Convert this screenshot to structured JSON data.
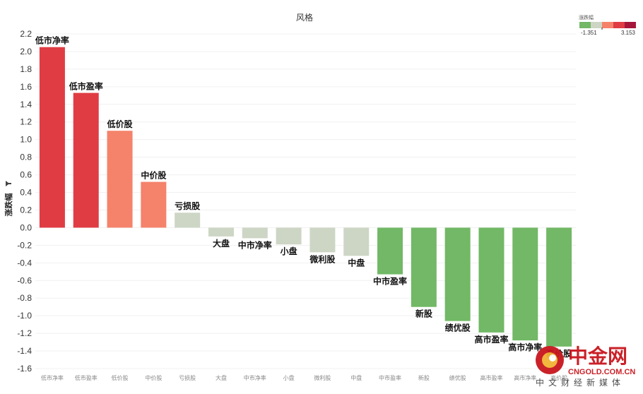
{
  "chart_data": {
    "type": "bar",
    "title": "风格",
    "ylabel": "涨跌幅",
    "ylabel_icon": "filter-icon",
    "ylim": [
      -1.6,
      2.2
    ],
    "yticks": [
      "2.2",
      "2.0",
      "1.8",
      "1.6",
      "1.4",
      "1.2",
      "1.0",
      "0.8",
      "0.6",
      "0.4",
      "0.2",
      "0.0",
      "-0.2",
      "-0.4",
      "-0.6",
      "-0.8",
      "-1.0",
      "-1.2",
      "-1.4",
      "-1.6"
    ],
    "grid": true,
    "categories": [
      "低市净率",
      "低市盈率",
      "低价股",
      "中价股",
      "亏损股",
      "大盘",
      "中市净率",
      "小盘",
      "微利股",
      "中盘",
      "中市盈率",
      "新股",
      "绩优股",
      "高市盈率",
      "高市净率",
      "高价股"
    ],
    "values": [
      2.05,
      1.53,
      1.1,
      0.52,
      0.17,
      -0.1,
      -0.12,
      -0.19,
      -0.28,
      -0.32,
      -0.53,
      -0.9,
      -1.06,
      -1.19,
      -1.28,
      -1.35
    ],
    "colors": [
      "#e03c44",
      "#e03c44",
      "#f5826b",
      "#f5826b",
      "#cdd6c5",
      "#cdd6c5",
      "#cdd6c5",
      "#cdd6c5",
      "#cdd6c5",
      "#cdd6c5",
      "#72b866",
      "#72b866",
      "#72b866",
      "#72b866",
      "#72b866",
      "#72b866"
    ],
    "legend": {
      "title": "涨跌幅",
      "placement": "top-right",
      "min": "-1.351",
      "max": "3.153",
      "colors": [
        "#72b866",
        "#cdd6c5",
        "#f5826b",
        "#e03c44",
        "#a5163a"
      ]
    }
  },
  "watermark": {
    "name": "中金网",
    "domain": "CNGOLD.COM.CN",
    "tagline": "中文财经新媒体"
  }
}
